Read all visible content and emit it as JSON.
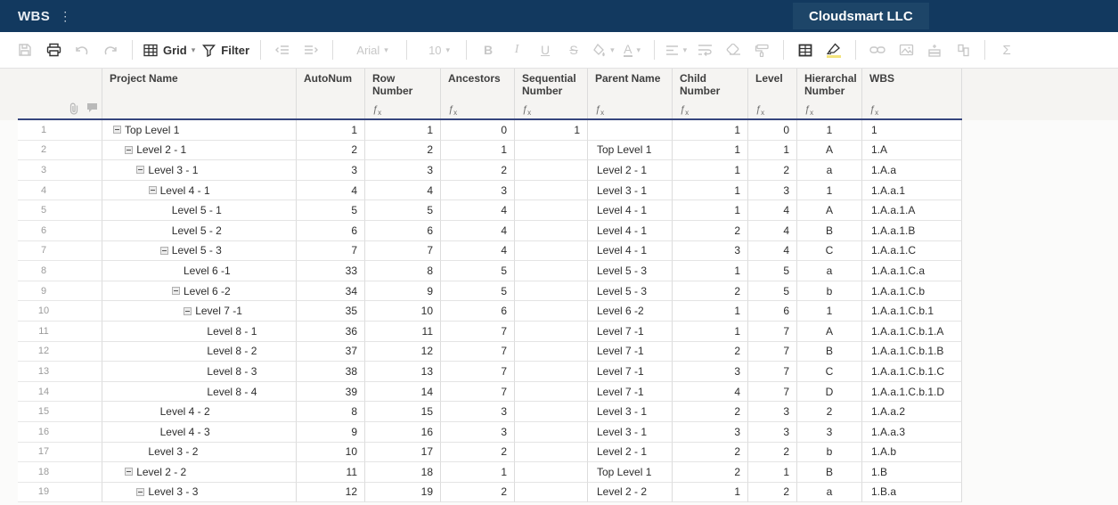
{
  "titlebar": {
    "app_title": "WBS",
    "kebab": "⋮",
    "account_name": "Cloudsmart LLC"
  },
  "toolbar": {
    "grid_label": "Grid",
    "filter_label": "Filter",
    "font_family_value": "Arial",
    "font_size_value": "10",
    "bold_glyph": "B",
    "italic_glyph": "I",
    "underline_glyph": "U",
    "strikethrough_glyph": "S",
    "sigma_glyph": "Σ",
    "caret": "▾"
  },
  "grid": {
    "columns": [
      {
        "label": "Project Name",
        "has_fx": false
      },
      {
        "label": "AutoNum",
        "has_fx": false
      },
      {
        "label": "Row Number",
        "has_fx": true
      },
      {
        "label": "Ancestors",
        "has_fx": true
      },
      {
        "label": "Sequential Number",
        "has_fx": true
      },
      {
        "label": "Parent Name",
        "has_fx": true
      },
      {
        "label": "Child Number",
        "has_fx": true
      },
      {
        "label": "Level",
        "has_fx": true
      },
      {
        "label": "Hierarchal Number",
        "has_fx": true
      },
      {
        "label": "WBS",
        "has_fx": true
      }
    ],
    "fx_glyph": "ƒ",
    "rows": [
      {
        "num": "1",
        "name": "Top Level 1",
        "indent": 0,
        "collapse": true,
        "autonum": "1",
        "row_number": "1",
        "ancestors": "0",
        "sequential": "1",
        "parent": "",
        "child": "1",
        "level": "0",
        "hierarchal": "1",
        "wbs": "1"
      },
      {
        "num": "2",
        "name": "Level 2 - 1",
        "indent": 1,
        "collapse": true,
        "autonum": "2",
        "row_number": "2",
        "ancestors": "1",
        "sequential": "",
        "parent": "Top Level 1",
        "child": "1",
        "level": "1",
        "hierarchal": "A",
        "wbs": "1.A"
      },
      {
        "num": "3",
        "name": "Level 3 - 1",
        "indent": 2,
        "collapse": true,
        "autonum": "3",
        "row_number": "3",
        "ancestors": "2",
        "sequential": "",
        "parent": "Level 2 - 1",
        "child": "1",
        "level": "2",
        "hierarchal": "a",
        "wbs": "1.A.a"
      },
      {
        "num": "4",
        "name": "Level 4 - 1",
        "indent": 3,
        "collapse": true,
        "autonum": "4",
        "row_number": "4",
        "ancestors": "3",
        "sequential": "",
        "parent": "Level 3 - 1",
        "child": "1",
        "level": "3",
        "hierarchal": "1",
        "wbs": "1.A.a.1"
      },
      {
        "num": "5",
        "name": "Level 5 - 1",
        "indent": 4,
        "collapse": false,
        "autonum": "5",
        "row_number": "5",
        "ancestors": "4",
        "sequential": "",
        "parent": "Level 4 - 1",
        "child": "1",
        "level": "4",
        "hierarchal": "A",
        "wbs": "1.A.a.1.A"
      },
      {
        "num": "6",
        "name": "Level 5 - 2",
        "indent": 4,
        "collapse": false,
        "autonum": "6",
        "row_number": "6",
        "ancestors": "4",
        "sequential": "",
        "parent": "Level 4 - 1",
        "child": "2",
        "level": "4",
        "hierarchal": "B",
        "wbs": "1.A.a.1.B"
      },
      {
        "num": "7",
        "name": "Level 5 - 3",
        "indent": 4,
        "collapse": true,
        "autonum": "7",
        "row_number": "7",
        "ancestors": "4",
        "sequential": "",
        "parent": "Level 4 - 1",
        "child": "3",
        "level": "4",
        "hierarchal": "C",
        "wbs": "1.A.a.1.C"
      },
      {
        "num": "8",
        "name": "Level 6 -1",
        "indent": 5,
        "collapse": false,
        "autonum": "33",
        "row_number": "8",
        "ancestors": "5",
        "sequential": "",
        "parent": "Level 5 - 3",
        "child": "1",
        "level": "5",
        "hierarchal": "a",
        "wbs": "1.A.a.1.C.a"
      },
      {
        "num": "9",
        "name": "Level 6 -2",
        "indent": 5,
        "collapse": true,
        "autonum": "34",
        "row_number": "9",
        "ancestors": "5",
        "sequential": "",
        "parent": "Level 5 - 3",
        "child": "2",
        "level": "5",
        "hierarchal": "b",
        "wbs": "1.A.a.1.C.b"
      },
      {
        "num": "10",
        "name": "Level 7 -1",
        "indent": 6,
        "collapse": true,
        "autonum": "35",
        "row_number": "10",
        "ancestors": "6",
        "sequential": "",
        "parent": "Level 6 -2",
        "child": "1",
        "level": "6",
        "hierarchal": "1",
        "wbs": "1.A.a.1.C.b.1"
      },
      {
        "num": "11",
        "name": "Level 8 - 1",
        "indent": 7,
        "collapse": false,
        "autonum": "36",
        "row_number": "11",
        "ancestors": "7",
        "sequential": "",
        "parent": "Level 7 -1",
        "child": "1",
        "level": "7",
        "hierarchal": "A",
        "wbs": "1.A.a.1.C.b.1.A"
      },
      {
        "num": "12",
        "name": "Level 8 - 2",
        "indent": 7,
        "collapse": false,
        "autonum": "37",
        "row_number": "12",
        "ancestors": "7",
        "sequential": "",
        "parent": "Level 7 -1",
        "child": "2",
        "level": "7",
        "hierarchal": "B",
        "wbs": "1.A.a.1.C.b.1.B"
      },
      {
        "num": "13",
        "name": "Level 8 - 3",
        "indent": 7,
        "collapse": false,
        "autonum": "38",
        "row_number": "13",
        "ancestors": "7",
        "sequential": "",
        "parent": "Level 7 -1",
        "child": "3",
        "level": "7",
        "hierarchal": "C",
        "wbs": "1.A.a.1.C.b.1.C"
      },
      {
        "num": "14",
        "name": "Level 8 - 4",
        "indent": 7,
        "collapse": false,
        "autonum": "39",
        "row_number": "14",
        "ancestors": "7",
        "sequential": "",
        "parent": "Level 7 -1",
        "child": "4",
        "level": "7",
        "hierarchal": "D",
        "wbs": "1.A.a.1.C.b.1.D"
      },
      {
        "num": "15",
        "name": "Level 4 - 2",
        "indent": 3,
        "collapse": false,
        "autonum": "8",
        "row_number": "15",
        "ancestors": "3",
        "sequential": "",
        "parent": "Level 3 - 1",
        "child": "2",
        "level": "3",
        "hierarchal": "2",
        "wbs": "1.A.a.2"
      },
      {
        "num": "16",
        "name": "Level 4 - 3",
        "indent": 3,
        "collapse": false,
        "autonum": "9",
        "row_number": "16",
        "ancestors": "3",
        "sequential": "",
        "parent": "Level 3 - 1",
        "child": "3",
        "level": "3",
        "hierarchal": "3",
        "wbs": "1.A.a.3"
      },
      {
        "num": "17",
        "name": "Level 3 - 2",
        "indent": 2,
        "collapse": false,
        "autonum": "10",
        "row_number": "17",
        "ancestors": "2",
        "sequential": "",
        "parent": "Level 2 - 1",
        "child": "2",
        "level": "2",
        "hierarchal": "b",
        "wbs": "1.A.b"
      },
      {
        "num": "18",
        "name": "Level 2 - 2",
        "indent": 1,
        "collapse": true,
        "autonum": "11",
        "row_number": "18",
        "ancestors": "1",
        "sequential": "",
        "parent": "Top Level 1",
        "child": "2",
        "level": "1",
        "hierarchal": "B",
        "wbs": "1.B"
      },
      {
        "num": "19",
        "name": "Level 3 - 3",
        "indent": 2,
        "collapse": true,
        "autonum": "12",
        "row_number": "19",
        "ancestors": "2",
        "sequential": "",
        "parent": "Level 2 - 2",
        "child": "1",
        "level": "2",
        "hierarchal": "a",
        "wbs": "1.B.a"
      }
    ]
  }
}
